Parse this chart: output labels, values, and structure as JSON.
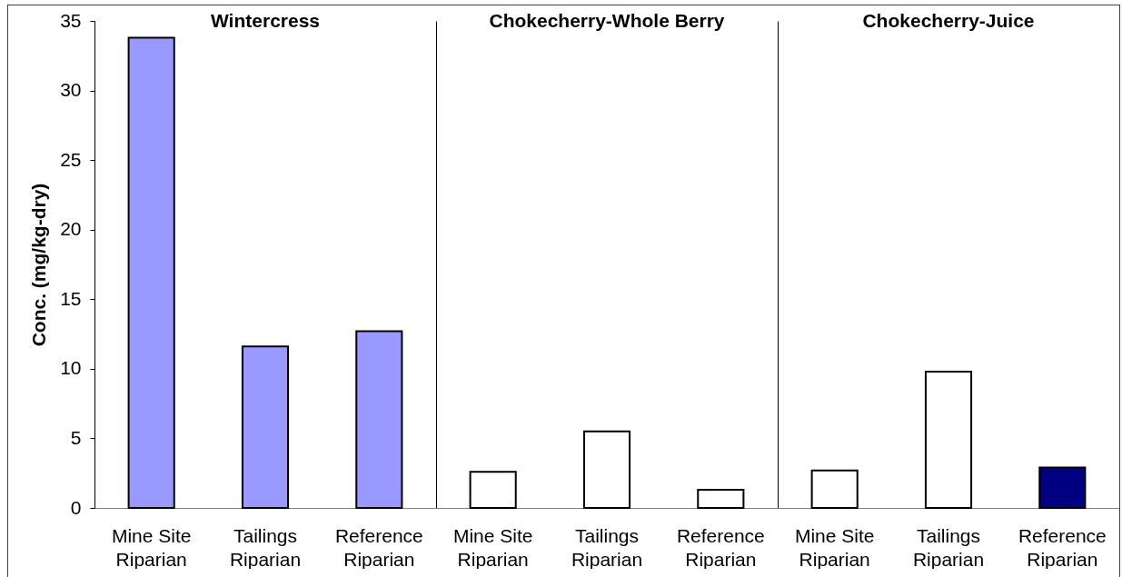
{
  "chart_data": [
    {
      "type": "bar",
      "title": "Wintercress",
      "ylabel": "Conc.  (mg/kg-dry)",
      "categories": [
        "Mine Site Riparian",
        "Tailings Riparian",
        "Reference Riparian"
      ],
      "values": [
        33.8,
        11.6,
        12.7
      ],
      "colors": [
        "#9999ff",
        "#9999ff",
        "#9999ff"
      ],
      "ylim": [
        0,
        35
      ],
      "yticks": [
        0,
        5,
        10,
        15,
        20,
        25,
        30,
        35
      ]
    },
    {
      "type": "bar",
      "title": "Chokecherry-Whole Berry",
      "categories": [
        "Mine Site Riparian",
        "Tailings Riparian",
        "Reference Riparian"
      ],
      "values": [
        2.6,
        5.5,
        1.3
      ],
      "colors": [
        "#ffffff",
        "#ffffff",
        "#ffffff"
      ],
      "ylim": [
        0,
        35
      ],
      "tick_labels": "x"
    },
    {
      "type": "bar",
      "title": "Chokecherry-Juice",
      "categories": [
        "Mine Site Riparian",
        "Tailings Riparian",
        "Reference Riparian"
      ],
      "values": [
        2.7,
        9.8,
        2.9
      ],
      "colors": [
        "#ffffff",
        "#ffffff",
        "#000080"
      ],
      "ylim": [
        0,
        35
      ],
      "tick_labels": "x"
    }
  ]
}
